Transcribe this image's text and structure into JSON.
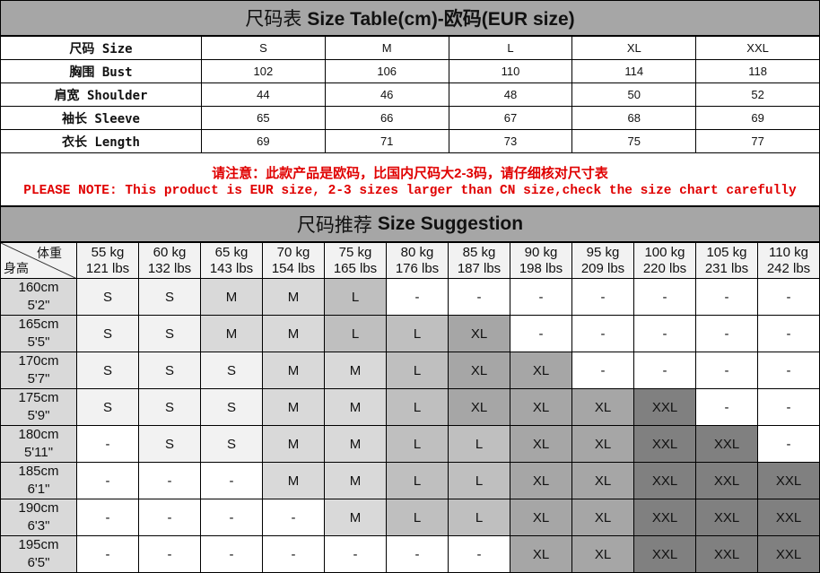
{
  "size_table": {
    "title_cn": "尺码表",
    "title_en": "Size Table(cm)-欧码(EUR size)",
    "rows": [
      {
        "label": "尺码 Size",
        "values": [
          "S",
          "M",
          "L",
          "XL",
          "XXL"
        ]
      },
      {
        "label": "胸围 Bust",
        "values": [
          "102",
          "106",
          "110",
          "114",
          "118"
        ]
      },
      {
        "label": "肩宽 Shoulder",
        "values": [
          "44",
          "46",
          "48",
          "50",
          "52"
        ]
      },
      {
        "label": "袖长 Sleeve",
        "values": [
          "65",
          "66",
          "67",
          "68",
          "69"
        ]
      },
      {
        "label": "衣长 Length",
        "values": [
          "69",
          "71",
          "73",
          "75",
          "77"
        ]
      }
    ]
  },
  "note": {
    "cn": "请注意：此款产品是欧码，比国内尺码大2-3码，请仔细核对尺寸表",
    "en": "PLEASE NOTE: This product is EUR size, 2-3 sizes larger than CN size,check the size chart carefully"
  },
  "suggestion": {
    "title_cn": "尺码推荐",
    "title_en": "Size Suggestion",
    "corner_weight": "体重",
    "corner_height": "身高",
    "weights": [
      {
        "kg": "55 kg",
        "lbs": "121 lbs"
      },
      {
        "kg": "60 kg",
        "lbs": "132 lbs"
      },
      {
        "kg": "65 kg",
        "lbs": "143 lbs"
      },
      {
        "kg": "70 kg",
        "lbs": "154 lbs"
      },
      {
        "kg": "75 kg",
        "lbs": "165 lbs"
      },
      {
        "kg": "80 kg",
        "lbs": "176 lbs"
      },
      {
        "kg": "85 kg",
        "lbs": "187 lbs"
      },
      {
        "kg": "90 kg",
        "lbs": "198 lbs"
      },
      {
        "kg": "95 kg",
        "lbs": "209 lbs"
      },
      {
        "kg": "100 kg",
        "lbs": "220 lbs"
      },
      {
        "kg": "105 kg",
        "lbs": "231 lbs"
      },
      {
        "kg": "110 kg",
        "lbs": "242 lbs"
      }
    ],
    "rows": [
      {
        "cm": "160cm",
        "ft": "5'2\"",
        "sizes": [
          "S",
          "S",
          "M",
          "M",
          "L",
          "-",
          "-",
          "-",
          "-",
          "-",
          "-",
          "-"
        ]
      },
      {
        "cm": "165cm",
        "ft": "5'5\"",
        "sizes": [
          "S",
          "S",
          "M",
          "M",
          "L",
          "L",
          "XL",
          "-",
          "-",
          "-",
          "-",
          "-"
        ]
      },
      {
        "cm": "170cm",
        "ft": "5'7\"",
        "sizes": [
          "S",
          "S",
          "S",
          "M",
          "M",
          "L",
          "XL",
          "XL",
          "-",
          "-",
          "-",
          "-"
        ]
      },
      {
        "cm": "175cm",
        "ft": "5'9\"",
        "sizes": [
          "S",
          "S",
          "S",
          "M",
          "M",
          "L",
          "XL",
          "XL",
          "XL",
          "XXL",
          "-",
          "-"
        ]
      },
      {
        "cm": "180cm",
        "ft": "5'11\"",
        "sizes": [
          "-",
          "S",
          "S",
          "M",
          "M",
          "L",
          "L",
          "XL",
          "XL",
          "XXL",
          "XXL",
          "-"
        ]
      },
      {
        "cm": "185cm",
        "ft": "6'1\"",
        "sizes": [
          "-",
          "-",
          "-",
          "M",
          "M",
          "L",
          "L",
          "XL",
          "XL",
          "XXL",
          "XXL",
          "XXL"
        ]
      },
      {
        "cm": "190cm",
        "ft": "6'3\"",
        "sizes": [
          "-",
          "-",
          "-",
          "-",
          "M",
          "L",
          "L",
          "XL",
          "XL",
          "XXL",
          "XXL",
          "XXL"
        ]
      },
      {
        "cm": "195cm",
        "ft": "6'5\"",
        "sizes": [
          "-",
          "-",
          "-",
          "-",
          "-",
          "-",
          "-",
          "XL",
          "XL",
          "XXL",
          "XXL",
          "XXL"
        ]
      }
    ],
    "colors": {
      "S": "#f2f2f2",
      "M": "#d9d9d9",
      "L": "#bfbfbf",
      "XL": "#a6a6a6",
      "XXL": "#808080",
      "-": "#ffffff"
    }
  }
}
